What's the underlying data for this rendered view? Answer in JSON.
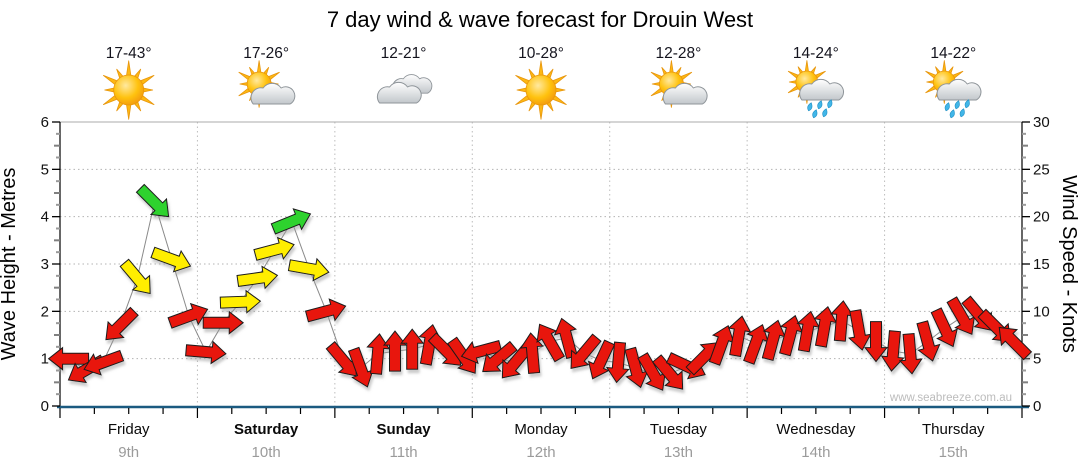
{
  "title": "7 day wind & wave forecast for Drouin West",
  "watermark": "www.seabreeze.com.au",
  "days": [
    {
      "name": "Friday",
      "date": "9th",
      "temp": "17-43°",
      "icon": "sunny",
      "bold": false
    },
    {
      "name": "Saturday",
      "date": "10th",
      "temp": "17-26°",
      "icon": "partly-cloudy",
      "bold": true
    },
    {
      "name": "Sunday",
      "date": "11th",
      "temp": "12-21°",
      "icon": "cloudy",
      "bold": true
    },
    {
      "name": "Monday",
      "date": "12th",
      "temp": "10-28°",
      "icon": "sunny",
      "bold": false
    },
    {
      "name": "Tuesday",
      "date": "13th",
      "temp": "12-28°",
      "icon": "partly-cloudy",
      "bold": false
    },
    {
      "name": "Wednesday",
      "date": "14th",
      "temp": "14-24°",
      "icon": "sun-showers",
      "bold": false
    },
    {
      "name": "Thursday",
      "date": "15th",
      "temp": "14-22°",
      "icon": "sun-showers",
      "bold": false
    }
  ],
  "chart_data": {
    "type": "scatter",
    "subtype": "wind-arrow-forecast",
    "title": "7 day wind & wave forecast for Drouin West",
    "left_axis": {
      "label": "Wave Height - Metres",
      "min": 0,
      "max": 6,
      "ticks": [
        0,
        1,
        2,
        3,
        4,
        5,
        6
      ]
    },
    "right_axis": {
      "label": "Wind Speed - Knots",
      "min": 0,
      "max": 30,
      "ticks": [
        0,
        5,
        10,
        15,
        20,
        25,
        30
      ]
    },
    "grid": true,
    "slots_per_day": 8,
    "colors": {
      "red": "#e81309",
      "yellow": "#ffee00",
      "green": "#2ed22e"
    },
    "arrow_fields": [
      "day_index",
      "slot_of_8",
      "knots",
      "direction_deg_pointing",
      "color"
    ],
    "arrows": [
      [
        0,
        0,
        5.0,
        270,
        "red"
      ],
      [
        0,
        1,
        3.8,
        240,
        "red"
      ],
      [
        0,
        2,
        4.6,
        250,
        "red"
      ],
      [
        0,
        3,
        8.5,
        225,
        "red"
      ],
      [
        0,
        4,
        13.5,
        140,
        "yellow"
      ],
      [
        0,
        5,
        21.5,
        135,
        "green"
      ],
      [
        0,
        6,
        15.5,
        110,
        "yellow"
      ],
      [
        0,
        7,
        9.5,
        70,
        "red"
      ],
      [
        1,
        0,
        5.7,
        95,
        "red"
      ],
      [
        1,
        1,
        8.8,
        90,
        "red"
      ],
      [
        1,
        2,
        11.0,
        88,
        "yellow"
      ],
      [
        1,
        3,
        13.5,
        82,
        "yellow"
      ],
      [
        1,
        4,
        16.5,
        75,
        "yellow"
      ],
      [
        1,
        5,
        19.5,
        68,
        "green"
      ],
      [
        1,
        6,
        14.5,
        100,
        "yellow"
      ],
      [
        1,
        7,
        10.0,
        75,
        "red"
      ],
      [
        2,
        0,
        4.8,
        140,
        "red"
      ],
      [
        2,
        1,
        4.0,
        160,
        "red"
      ],
      [
        2,
        2,
        5.5,
        5,
        "red"
      ],
      [
        2,
        3,
        5.8,
        0,
        "red"
      ],
      [
        2,
        4,
        6.0,
        0,
        "red"
      ],
      [
        2,
        5,
        6.5,
        10,
        "red"
      ],
      [
        2,
        6,
        5.8,
        135,
        "red"
      ],
      [
        2,
        7,
        5.2,
        145,
        "red"
      ],
      [
        3,
        0,
        5.8,
        255,
        "red"
      ],
      [
        3,
        1,
        5.0,
        230,
        "red"
      ],
      [
        3,
        2,
        4.6,
        220,
        "red"
      ],
      [
        3,
        3,
        5.6,
        355,
        "red"
      ],
      [
        3,
        4,
        6.8,
        330,
        "red"
      ],
      [
        3,
        5,
        7.2,
        345,
        "red"
      ],
      [
        3,
        6,
        5.6,
        220,
        "red"
      ],
      [
        3,
        7,
        4.8,
        205,
        "red"
      ],
      [
        4,
        0,
        4.6,
        185,
        "red"
      ],
      [
        4,
        1,
        4.0,
        165,
        "red"
      ],
      [
        4,
        2,
        3.5,
        150,
        "red"
      ],
      [
        4,
        3,
        3.4,
        140,
        "red"
      ],
      [
        4,
        4,
        4.2,
        115,
        "red"
      ],
      [
        4,
        5,
        5.2,
        45,
        "red"
      ],
      [
        4,
        6,
        6.5,
        20,
        "red"
      ],
      [
        4,
        7,
        7.4,
        10,
        "red"
      ],
      [
        5,
        0,
        6.6,
        20,
        "red"
      ],
      [
        5,
        1,
        7.0,
        15,
        "red"
      ],
      [
        5,
        2,
        7.5,
        15,
        "red"
      ],
      [
        5,
        3,
        7.9,
        10,
        "red"
      ],
      [
        5,
        4,
        8.4,
        10,
        "red"
      ],
      [
        5,
        5,
        9.0,
        5,
        "red"
      ],
      [
        5,
        6,
        8.0,
        170,
        "red"
      ],
      [
        5,
        7,
        6.8,
        180,
        "red"
      ],
      [
        6,
        0,
        5.8,
        185,
        "red"
      ],
      [
        6,
        1,
        5.5,
        175,
        "red"
      ],
      [
        6,
        2,
        6.8,
        165,
        "red"
      ],
      [
        6,
        3,
        8.2,
        155,
        "red"
      ],
      [
        6,
        4,
        9.4,
        150,
        "red"
      ],
      [
        6,
        5,
        9.6,
        140,
        "red"
      ],
      [
        6,
        6,
        8.3,
        135,
        "red"
      ],
      [
        6,
        7,
        6.8,
        315,
        "red"
      ]
    ]
  }
}
